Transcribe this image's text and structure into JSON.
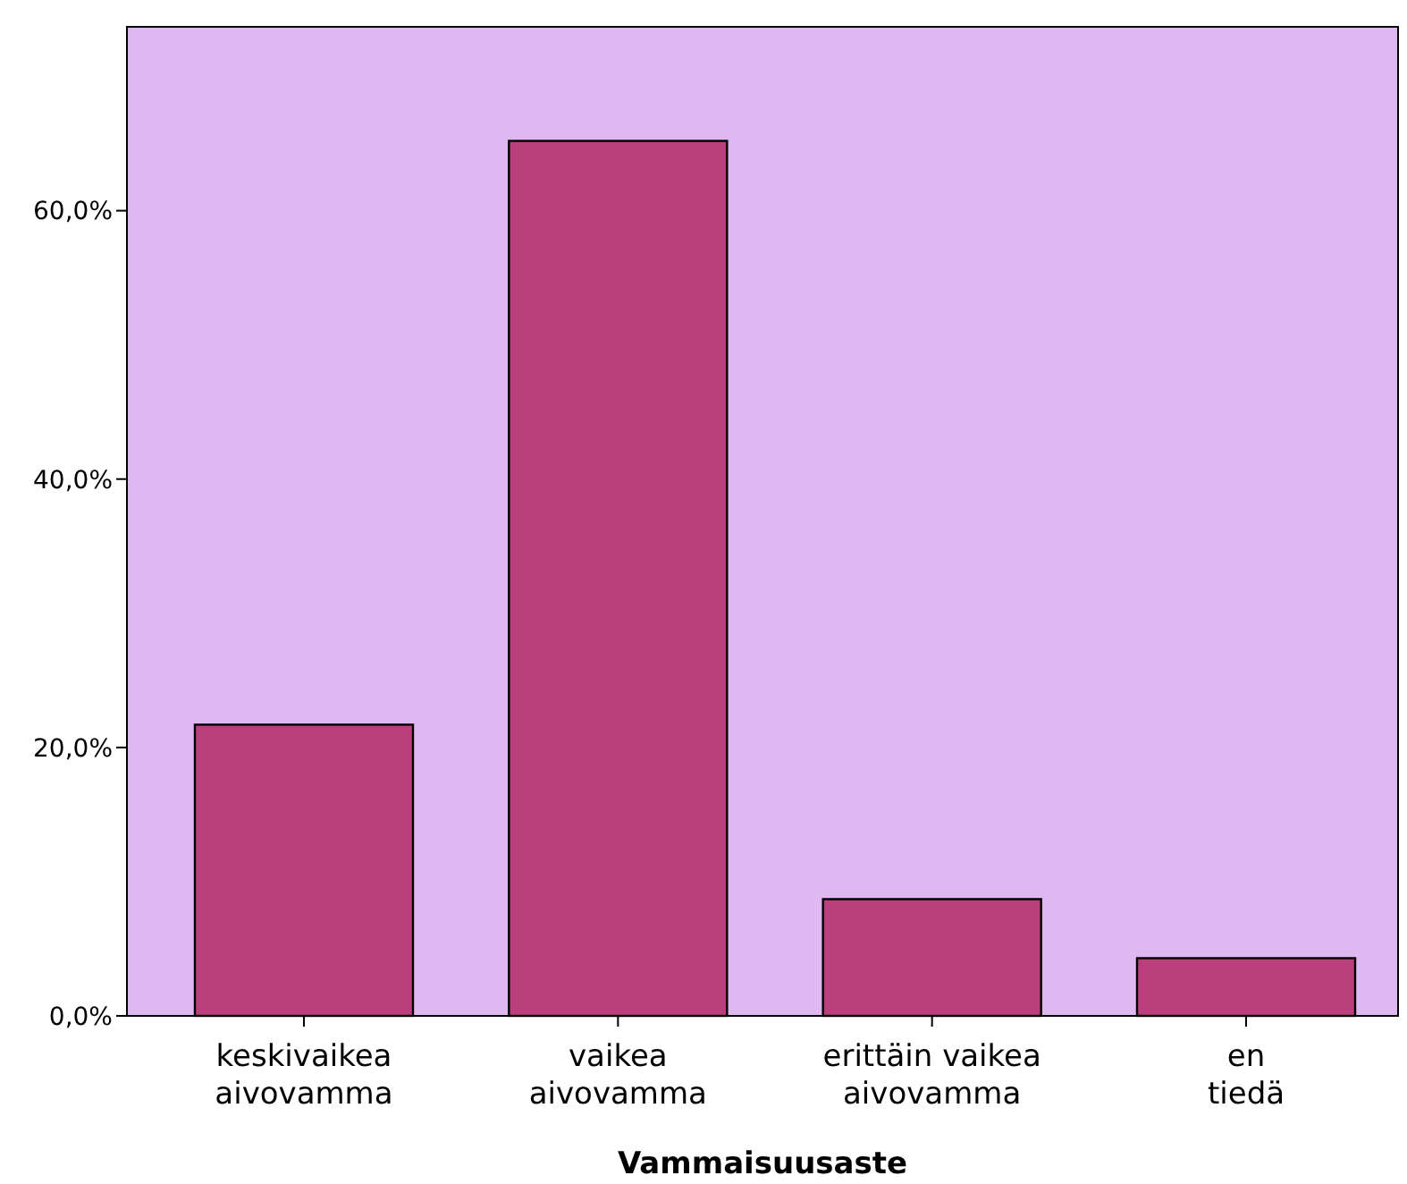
{
  "chart_data": {
    "type": "bar",
    "xlabel": "Vammaisuusaste",
    "categories": [
      "keskivaikea aivovamma",
      "vaikea aivovamma",
      "erittäin vaikea aivovamma",
      "en tiedä"
    ],
    "values": [
      21.7,
      65.2,
      8.7,
      4.3
    ],
    "color": "#bb3f7d",
    "ylim": [
      0,
      73.7
    ],
    "yticks": [
      {
        "value": 0,
        "label": "0,0%"
      },
      {
        "value": 20,
        "label": "20,0%"
      },
      {
        "value": 40,
        "label": "40,0%"
      },
      {
        "value": 60,
        "label": "60,0%"
      }
    ],
    "grid": false
  }
}
